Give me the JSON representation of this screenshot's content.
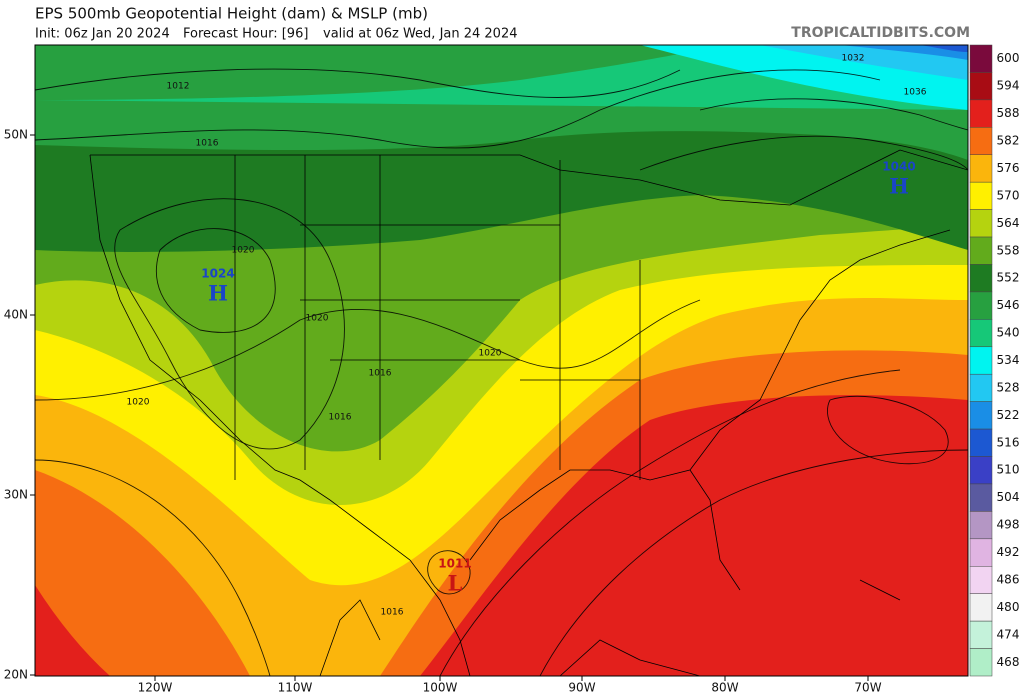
{
  "header": {
    "title": "EPS 500mb Geopotential Height (dam) & MSLP (mb)",
    "init": "Init: 06z Jan 20 2024",
    "forecast_hour": "Forecast Hour: [96]",
    "valid": "valid at 06z Wed, Jan 24 2024",
    "source": "TROPICALTIDBITS.COM"
  },
  "colorbar": {
    "levels": [
      {
        "label": "600",
        "color": "#7a0a3c"
      },
      {
        "label": "594",
        "color": "#a80c14"
      },
      {
        "label": "588",
        "color": "#e3201c"
      },
      {
        "label": "582",
        "color": "#f66d12"
      },
      {
        "label": "576",
        "color": "#fbb50c"
      },
      {
        "label": "570",
        "color": "#fff000"
      },
      {
        "label": "564",
        "color": "#b5d30f"
      },
      {
        "label": "558",
        "color": "#62ab1c"
      },
      {
        "label": "552",
        "color": "#1e7b22"
      },
      {
        "label": "546",
        "color": "#27a040"
      },
      {
        "label": "540",
        "color": "#16c878"
      },
      {
        "label": "534",
        "color": "#00f4f0"
      },
      {
        "label": "528",
        "color": "#22c8f2"
      },
      {
        "label": "522",
        "color": "#1a8ee6"
      },
      {
        "label": "516",
        "color": "#1c58d2"
      },
      {
        "label": "510",
        "color": "#3a40c6"
      },
      {
        "label": "504",
        "color": "#5a5aa0"
      },
      {
        "label": "498",
        "color": "#b496c4"
      },
      {
        "label": "492",
        "color": "#e0b4e2"
      },
      {
        "label": "486",
        "color": "#f2d4f2"
      },
      {
        "label": "480",
        "color": "#f2f2f2"
      },
      {
        "label": "474",
        "color": "#c4f2da"
      },
      {
        "label": "468",
        "color": "#b0eec8"
      }
    ]
  },
  "axes": {
    "latitudes": [
      "50N",
      "40N",
      "30N",
      "20N"
    ],
    "longitudes": [
      "120W",
      "110W",
      "100W",
      "90W",
      "80W",
      "70W"
    ]
  },
  "pressure_centers": [
    {
      "symbol": "H",
      "value": "1024"
    },
    {
      "symbol": "H",
      "value": "1040"
    },
    {
      "symbol": "L",
      "value": "1011"
    }
  ],
  "contour_labels": [
    "1012",
    "1016",
    "1020",
    "1020",
    "1016",
    "1016",
    "1020",
    "1020",
    "1032",
    "1036",
    "1016"
  ]
}
